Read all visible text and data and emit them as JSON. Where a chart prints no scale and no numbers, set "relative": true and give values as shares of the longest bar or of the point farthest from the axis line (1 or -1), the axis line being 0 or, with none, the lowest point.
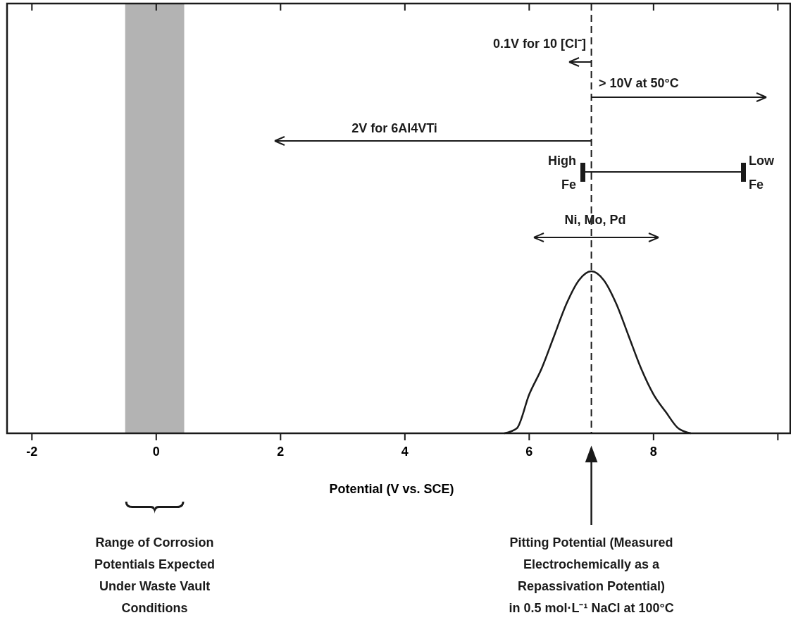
{
  "chart_data": {
    "type": "line",
    "relative": true,
    "xlabel": "Potential (V vs. SCE)",
    "xlim": [
      -2.4,
      10.2
    ],
    "xticks": [
      -2,
      0,
      2,
      4,
      6,
      {
        "value": 10,
        "label": null
      },
      8
    ],
    "x": [
      5.6,
      5.8,
      6.0,
      6.2,
      6.4,
      6.6,
      6.8,
      7.0,
      7.2,
      7.4,
      7.6,
      7.8,
      8.0,
      8.2,
      8.4,
      8.6
    ],
    "series": [
      {
        "color": "#1a1a1a",
        "values": [
          0,
          0.03,
          0.24,
          0.4,
          0.6,
          0.8,
          0.945,
          1,
          0.945,
          0.8,
          0.6,
          0.4,
          0.24,
          0.13,
          0.03,
          0
        ]
      }
    ],
    "bands": [
      {
        "axis": "x",
        "from": -0.5,
        "to": 0.45,
        "color": "#b3b3b3"
      }
    ],
    "ref_lines": [
      {
        "axis": "x",
        "value": 7,
        "line_style": "dashed",
        "color": "#1a1a1a",
        "label": "Pitting Potential (Measured\nElectrochemically as a\nRepassivation Potential)\nin 0.5 mol·L⁻¹ NaCl at 100°C"
      }
    ],
    "annotations": [
      "0.1V for 10 [Cl⁻]",
      "> 10V at 50°C",
      "2V for 6Al4VTi",
      "High Fe",
      "Low Fe",
      "Ni, Mo, Pd",
      "Range of Corrosion\nPotentials Expected\nUnder Waste Vault\nConditions"
    ]
  }
}
